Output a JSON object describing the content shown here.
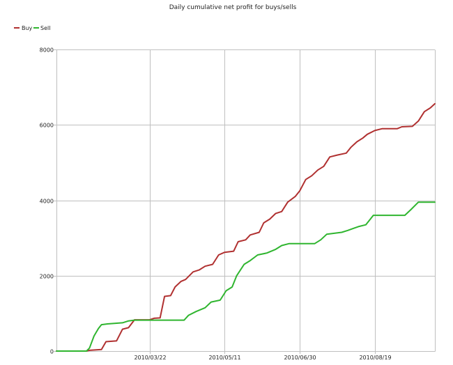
{
  "chart_data": {
    "type": "line",
    "title": "Daily cumulative net profit for buys/sells",
    "legend": {
      "placement": "top-left",
      "entries": [
        {
          "name": "Buy",
          "color": "#b03030"
        },
        {
          "name": "Sell",
          "color": "#2fb52f"
        }
      ]
    },
    "x_axis": {
      "type": "date",
      "range": [
        "2010-01-19",
        "2010-09-28"
      ],
      "ticks": [
        {
          "date": "2010-03-22",
          "label": "2010/03/22"
        },
        {
          "date": "2010-05-11",
          "label": "2010/05/11"
        },
        {
          "date": "2010-06-30",
          "label": "2010/06/30"
        },
        {
          "date": "2010-08-19",
          "label": "2010/08/19"
        }
      ]
    },
    "y_axis": {
      "range": [
        0,
        8000
      ],
      "ticks": [
        {
          "value": 0,
          "label": "0"
        },
        {
          "value": 2000,
          "label": "2000"
        },
        {
          "value": 4000,
          "label": "4000"
        },
        {
          "value": 6000,
          "label": "6000"
        },
        {
          "value": 8000,
          "label": "8000"
        }
      ]
    },
    "grid": true,
    "series": [
      {
        "name": "Buy",
        "color": "#b03030",
        "points": [
          [
            "2010-01-19",
            0
          ],
          [
            "2010-02-08",
            0
          ],
          [
            "2010-02-10",
            20
          ],
          [
            "2010-02-18",
            40
          ],
          [
            "2010-02-21",
            250
          ],
          [
            "2010-02-28",
            270
          ],
          [
            "2010-03-04",
            580
          ],
          [
            "2010-03-08",
            620
          ],
          [
            "2010-03-12",
            830
          ],
          [
            "2010-03-22",
            830
          ],
          [
            "2010-03-25",
            870
          ],
          [
            "2010-03-29",
            880
          ],
          [
            "2010-04-01",
            1450
          ],
          [
            "2010-04-05",
            1470
          ],
          [
            "2010-04-08",
            1700
          ],
          [
            "2010-04-12",
            1850
          ],
          [
            "2010-04-15",
            1900
          ],
          [
            "2010-04-20",
            2100
          ],
          [
            "2010-04-24",
            2150
          ],
          [
            "2010-04-28",
            2250
          ],
          [
            "2010-05-03",
            2300
          ],
          [
            "2010-05-07",
            2550
          ],
          [
            "2010-05-11",
            2620
          ],
          [
            "2010-05-17",
            2650
          ],
          [
            "2010-05-20",
            2900
          ],
          [
            "2010-05-25",
            2950
          ],
          [
            "2010-05-28",
            3080
          ],
          [
            "2010-06-03",
            3150
          ],
          [
            "2010-06-06",
            3400
          ],
          [
            "2010-06-10",
            3500
          ],
          [
            "2010-06-14",
            3650
          ],
          [
            "2010-06-18",
            3700
          ],
          [
            "2010-06-22",
            3950
          ],
          [
            "2010-06-27",
            4100
          ],
          [
            "2010-06-30",
            4250
          ],
          [
            "2010-07-04",
            4550
          ],
          [
            "2010-07-08",
            4650
          ],
          [
            "2010-07-12",
            4800
          ],
          [
            "2010-07-16",
            4900
          ],
          [
            "2010-07-20",
            5150
          ],
          [
            "2010-07-25",
            5200
          ],
          [
            "2010-07-31",
            5250
          ],
          [
            "2010-08-03",
            5400
          ],
          [
            "2010-08-07",
            5550
          ],
          [
            "2010-08-11",
            5650
          ],
          [
            "2010-08-14",
            5750
          ],
          [
            "2010-08-19",
            5850
          ],
          [
            "2010-08-24",
            5900
          ],
          [
            "2010-09-03",
            5900
          ],
          [
            "2010-09-06",
            5950
          ],
          [
            "2010-09-13",
            5960
          ],
          [
            "2010-09-17",
            6100
          ],
          [
            "2010-09-21",
            6350
          ],
          [
            "2010-09-25",
            6450
          ],
          [
            "2010-09-28",
            6560
          ]
        ]
      },
      {
        "name": "Sell",
        "color": "#2fb52f",
        "points": [
          [
            "2010-01-19",
            0
          ],
          [
            "2010-02-08",
            0
          ],
          [
            "2010-02-10",
            80
          ],
          [
            "2010-02-13",
            400
          ],
          [
            "2010-02-16",
            600
          ],
          [
            "2010-02-18",
            700
          ],
          [
            "2010-02-22",
            720
          ],
          [
            "2010-03-04",
            750
          ],
          [
            "2010-03-08",
            800
          ],
          [
            "2010-03-12",
            820
          ],
          [
            "2010-03-22",
            820
          ],
          [
            "2010-04-01",
            820
          ],
          [
            "2010-04-14",
            820
          ],
          [
            "2010-04-17",
            950
          ],
          [
            "2010-04-22",
            1050
          ],
          [
            "2010-04-28",
            1150
          ],
          [
            "2010-05-02",
            1300
          ],
          [
            "2010-05-08",
            1350
          ],
          [
            "2010-05-12",
            1600
          ],
          [
            "2010-05-16",
            1700
          ],
          [
            "2010-05-19",
            2000
          ],
          [
            "2010-05-24",
            2300
          ],
          [
            "2010-05-28",
            2400
          ],
          [
            "2010-06-02",
            2550
          ],
          [
            "2010-06-08",
            2600
          ],
          [
            "2010-06-14",
            2700
          ],
          [
            "2010-06-18",
            2800
          ],
          [
            "2010-06-23",
            2850
          ],
          [
            "2010-07-10",
            2850
          ],
          [
            "2010-07-14",
            2950
          ],
          [
            "2010-07-18",
            3100
          ],
          [
            "2010-07-28",
            3150
          ],
          [
            "2010-08-01",
            3200
          ],
          [
            "2010-08-08",
            3300
          ],
          [
            "2010-08-13",
            3350
          ],
          [
            "2010-08-18",
            3600
          ],
          [
            "2010-09-08",
            3600
          ],
          [
            "2010-09-12",
            3750
          ],
          [
            "2010-09-17",
            3950
          ],
          [
            "2010-09-28",
            3950
          ]
        ]
      }
    ]
  }
}
